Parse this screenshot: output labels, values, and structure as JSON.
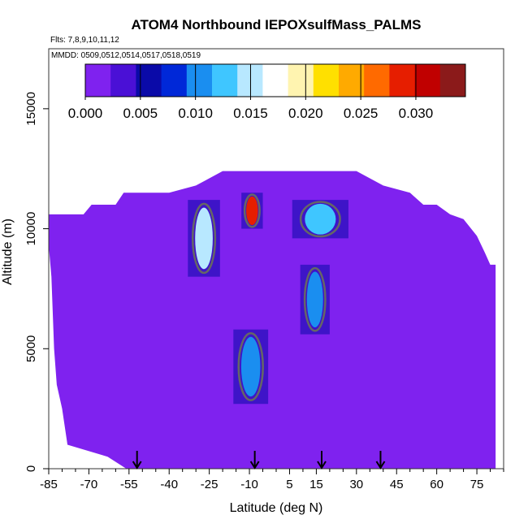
{
  "chart_data": {
    "type": "heatmap",
    "title": "ATOM4 Northbound IEPOXsulfMass_PALMS",
    "subtitle_flights": "Flts: 7,8,9,10,11,12",
    "subtitle_dates": "MMDD: 0509,0512,0514,0517,0518,0519",
    "xlabel": "Latitude (deg N)",
    "ylabel": "Altitude (m)",
    "xlim": [
      -85,
      85
    ],
    "ylim": [
      0,
      17500
    ],
    "x_ticks": [
      -85,
      -70,
      -55,
      -40,
      -25,
      -10,
      5,
      15,
      30,
      45,
      60,
      75
    ],
    "x_tick_labels": [
      "-85",
      "-70",
      "-55",
      "-40",
      "-25",
      "-10",
      "5",
      "15",
      "30",
      "45",
      "60",
      "75"
    ],
    "y_ticks": [
      0,
      5000,
      10000,
      15000
    ],
    "y_tick_labels": [
      "0",
      "5000",
      "10000",
      "15000"
    ],
    "colorbar": {
      "min": 0.0,
      "max": 0.0345,
      "ticks": [
        0.0,
        0.005,
        0.01,
        0.015,
        0.02,
        0.025,
        0.03
      ],
      "tick_labels": [
        "0.000",
        "0.005",
        "0.010",
        "0.015",
        "0.020",
        "0.025",
        "0.030"
      ],
      "colors": [
        "#7f22ef",
        "#4a10d6",
        "#0a0aa8",
        "#0028d8",
        "#1a8ef0",
        "#3fc6ff",
        "#b8e8ff",
        "#ffffff",
        "#fff4b0",
        "#ffe000",
        "#ffaa00",
        "#ff6a00",
        "#e61e00",
        "#c00000",
        "#8b1a1a"
      ]
    },
    "background_value": 0.0,
    "background_color": "#7f22ef",
    "coverage_profile": [
      {
        "lat": -85,
        "alt_top": 10600
      },
      {
        "lat": -82,
        "alt_top": 10600
      },
      {
        "lat": -78,
        "alt_top": 10600
      },
      {
        "lat": -75,
        "alt_top": 10600
      },
      {
        "lat": -72,
        "alt_top": 10600
      },
      {
        "lat": -69,
        "alt_top": 11000
      },
      {
        "lat": -63,
        "alt_top": 11000
      },
      {
        "lat": -60,
        "alt_top": 11000
      },
      {
        "lat": -57,
        "alt_top": 11500
      },
      {
        "lat": -50,
        "alt_top": 11500
      },
      {
        "lat": -40,
        "alt_top": 11500
      },
      {
        "lat": -30,
        "alt_top": 11800
      },
      {
        "lat": -20,
        "alt_top": 12400
      },
      {
        "lat": -10,
        "alt_top": 12400
      },
      {
        "lat": 0,
        "alt_top": 12400
      },
      {
        "lat": 10,
        "alt_top": 12400
      },
      {
        "lat": 20,
        "alt_top": 12400
      },
      {
        "lat": 30,
        "alt_top": 12400
      },
      {
        "lat": 40,
        "alt_top": 11800
      },
      {
        "lat": 50,
        "alt_top": 11500
      },
      {
        "lat": 55,
        "alt_top": 11000
      },
      {
        "lat": 60,
        "alt_top": 11000
      },
      {
        "lat": 65,
        "alt_top": 10600
      },
      {
        "lat": 70,
        "alt_top": 10400
      },
      {
        "lat": 75,
        "alt_top": 9700
      },
      {
        "lat": 78,
        "alt_top": 9000
      },
      {
        "lat": 80,
        "alt_top": 8500
      },
      {
        "lat": 82,
        "alt_top": 8500
      }
    ],
    "coverage_bottom_profile": [
      {
        "lat": -85,
        "alt_bottom": 9300
      },
      {
        "lat": -84,
        "alt_bottom": 8000
      },
      {
        "lat": -83,
        "alt_bottom": 5000
      },
      {
        "lat": -82,
        "alt_bottom": 3500
      },
      {
        "lat": -80,
        "alt_bottom": 2500
      },
      {
        "lat": -78,
        "alt_bottom": 1000
      },
      {
        "lat": -63,
        "alt_bottom": 500
      },
      {
        "lat": -56,
        "alt_bottom": 0
      }
    ],
    "features": [
      {
        "name": "lower-tropical-plume",
        "lat_min": -16,
        "lat_max": -3,
        "alt_min": 2700,
        "alt_max": 5800,
        "peak_value": 0.011
      },
      {
        "name": "upper-southern-plume",
        "lat_min": -33,
        "lat_max": -21,
        "alt_min": 8000,
        "alt_max": 11200,
        "peak_value": 0.016
      },
      {
        "name": "upper-tropical-plume",
        "lat_min": -13,
        "lat_max": -5,
        "alt_min": 10000,
        "alt_max": 11500,
        "peak_value": 0.028
      },
      {
        "name": "upper-northern-plume",
        "lat_min": 6,
        "lat_max": 27,
        "alt_min": 9600,
        "alt_max": 11200,
        "peak_value": 0.012
      },
      {
        "name": "mid-northern-plume",
        "lat_min": 9,
        "lat_max": 20,
        "alt_min": 5600,
        "alt_max": 8500,
        "peak_value": 0.011
      }
    ],
    "arrows_lat": [
      -52,
      -8,
      17,
      39
    ],
    "legend_placement": "top",
    "grid": false
  }
}
